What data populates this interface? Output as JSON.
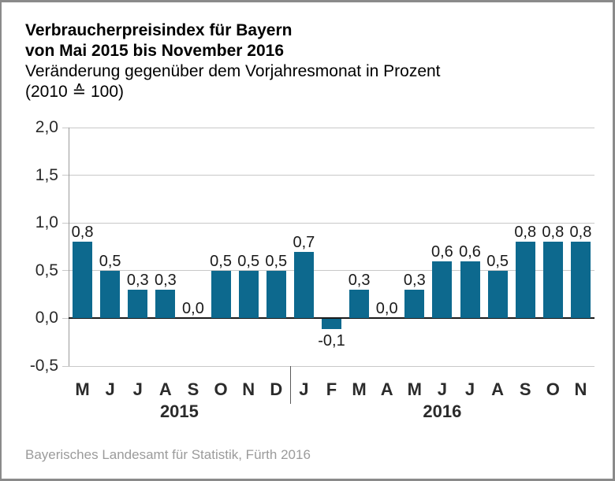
{
  "header": {
    "title_line1": "Verbraucherpreisindex für Bayern",
    "title_line2": "von Mai 2015 bis November 2016",
    "subtitle_line1": "Veränderung gegenüber dem Vorjahresmonat in Prozent",
    "subtitle_line2": "(2010 ≙ 100)"
  },
  "chart_data": {
    "type": "bar",
    "title": "Verbraucherpreisindex für Bayern von Mai 2015 bis November 2016",
    "ylabel": "Veränderung gegenüber dem Vorjahresmonat in Prozent",
    "unit_note": "(2010 ≙ 100)",
    "categories": [
      "M",
      "J",
      "J",
      "A",
      "S",
      "O",
      "N",
      "D",
      "J",
      "F",
      "M",
      "A",
      "M",
      "J",
      "J",
      "A",
      "S",
      "O",
      "N"
    ],
    "values": [
      0.8,
      0.5,
      0.3,
      0.3,
      0.0,
      0.5,
      0.5,
      0.5,
      0.7,
      -0.1,
      0.3,
      0.0,
      0.3,
      0.6,
      0.6,
      0.5,
      0.8,
      0.8,
      0.8
    ],
    "value_labels": [
      "0,8",
      "0,5",
      "0,3",
      "0,3",
      "0,0",
      "0,5",
      "0,5",
      "0,5",
      "0,7",
      "-0,1",
      "0,3",
      "0,0",
      "0,3",
      "0,6",
      "0,6",
      "0,5",
      "0,8",
      "0,8",
      "0,8"
    ],
    "year_groups": [
      {
        "label": "2015",
        "start": 0,
        "count": 8
      },
      {
        "label": "2016",
        "start": 8,
        "count": 11
      }
    ],
    "y_ticks": [
      {
        "label": "2,0",
        "value": 2.0
      },
      {
        "label": "1,5",
        "value": 1.5
      },
      {
        "label": "1,0",
        "value": 1.0
      },
      {
        "label": "0,5",
        "value": 0.5
      },
      {
        "label": "0,0",
        "value": 0.0
      },
      {
        "label": "-0,5",
        "value": -0.5
      }
    ],
    "ylim": [
      -0.5,
      2.0
    ],
    "grid": true,
    "legend": "none"
  },
  "colors": {
    "bar": "#0d698e",
    "grid": "#c8c8c8",
    "axis": "#9b9b9b",
    "zero_line": "#1a1a1a",
    "separator": "#5a5a5a",
    "footer_text": "#9b9b9b",
    "frame_border": "#8a8a8a"
  },
  "footer": {
    "source": "Bayerisches Landesamt für Statistik, Fürth 2016"
  }
}
